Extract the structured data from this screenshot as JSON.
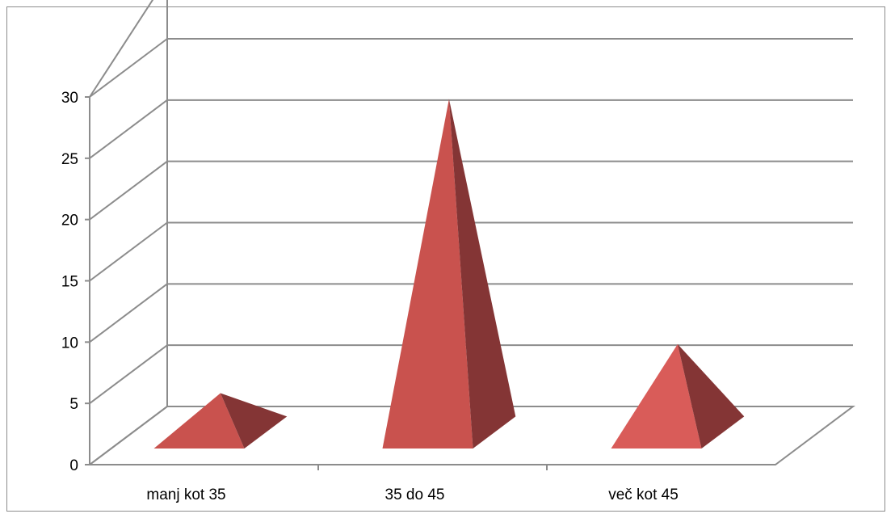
{
  "chart_data": {
    "type": "bar",
    "subtype": "3d-pyramid",
    "title": "",
    "xlabel": "",
    "ylabel": "",
    "categories": [
      "manj kot 35",
      "35 do 45",
      "več kot 45"
    ],
    "values": [
      4,
      28,
      8
    ],
    "ylim": [
      0,
      30
    ],
    "yticks": [
      0,
      5,
      10,
      15,
      20,
      25,
      30
    ],
    "grid": true,
    "legend": "none",
    "colors": {
      "front": "#c9524e",
      "side": "#843535",
      "light": "#d95c59",
      "grid": "#8c8c8c"
    }
  }
}
